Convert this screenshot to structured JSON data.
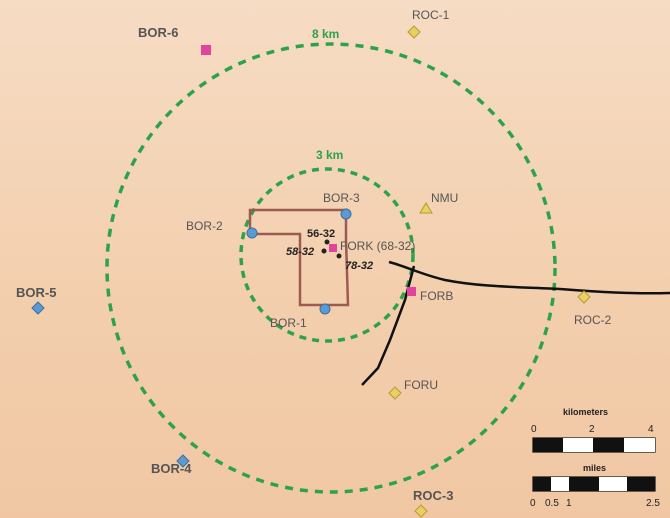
{
  "map": {
    "rings": [
      {
        "label": "8 km",
        "color": "#2ca24a"
      },
      {
        "label": "3 km",
        "color": "#2ca24a"
      }
    ],
    "stations": [
      {
        "id": "BOR-6",
        "label": "BOR-6",
        "type": "square",
        "color": "#e0449f"
      },
      {
        "id": "ROC-1",
        "label": "ROC-1",
        "type": "diamond",
        "color": "#ebcf62"
      },
      {
        "id": "BOR-3",
        "label": "BOR-3",
        "type": "circle",
        "color": "#5b9bd5"
      },
      {
        "id": "BOR-2",
        "label": "BOR-2",
        "type": "circle",
        "color": "#5b9bd5"
      },
      {
        "id": "BOR-1",
        "label": "BOR-1",
        "type": "circle",
        "color": "#5b9bd5"
      },
      {
        "id": "NMU",
        "label": "NMU",
        "type": "triangle",
        "color": "#ebcf62"
      },
      {
        "id": "FORK",
        "label": "FORK (68-32)",
        "type": "square",
        "color": "#e0449f"
      },
      {
        "id": "FORB",
        "label": "FORB",
        "type": "square",
        "color": "#e0449f"
      },
      {
        "id": "FORU",
        "label": "FORU",
        "type": "diamond",
        "color": "#ebcf62"
      },
      {
        "id": "ROC-2",
        "label": "ROC-2",
        "type": "diamond",
        "color": "#ebcf62"
      },
      {
        "id": "BOR-5",
        "label": "BOR-5",
        "type": "diamond",
        "color": "#5b9bd5"
      },
      {
        "id": "BOR-4",
        "label": "BOR-4",
        "type": "diamond",
        "color": "#5b9bd5"
      },
      {
        "id": "ROC-3",
        "label": "ROC-3",
        "type": "diamond",
        "color": "#ebcf62"
      }
    ],
    "wells": [
      {
        "label": "56-32"
      },
      {
        "label": "58-32"
      },
      {
        "label": "78-32"
      }
    ],
    "scale": {
      "km_title": "kilometers",
      "km_ticks": [
        "0",
        "2",
        "4"
      ],
      "mi_title": "miles",
      "mi_ticks": [
        "0",
        "0.5",
        "1",
        "2.5"
      ]
    }
  }
}
